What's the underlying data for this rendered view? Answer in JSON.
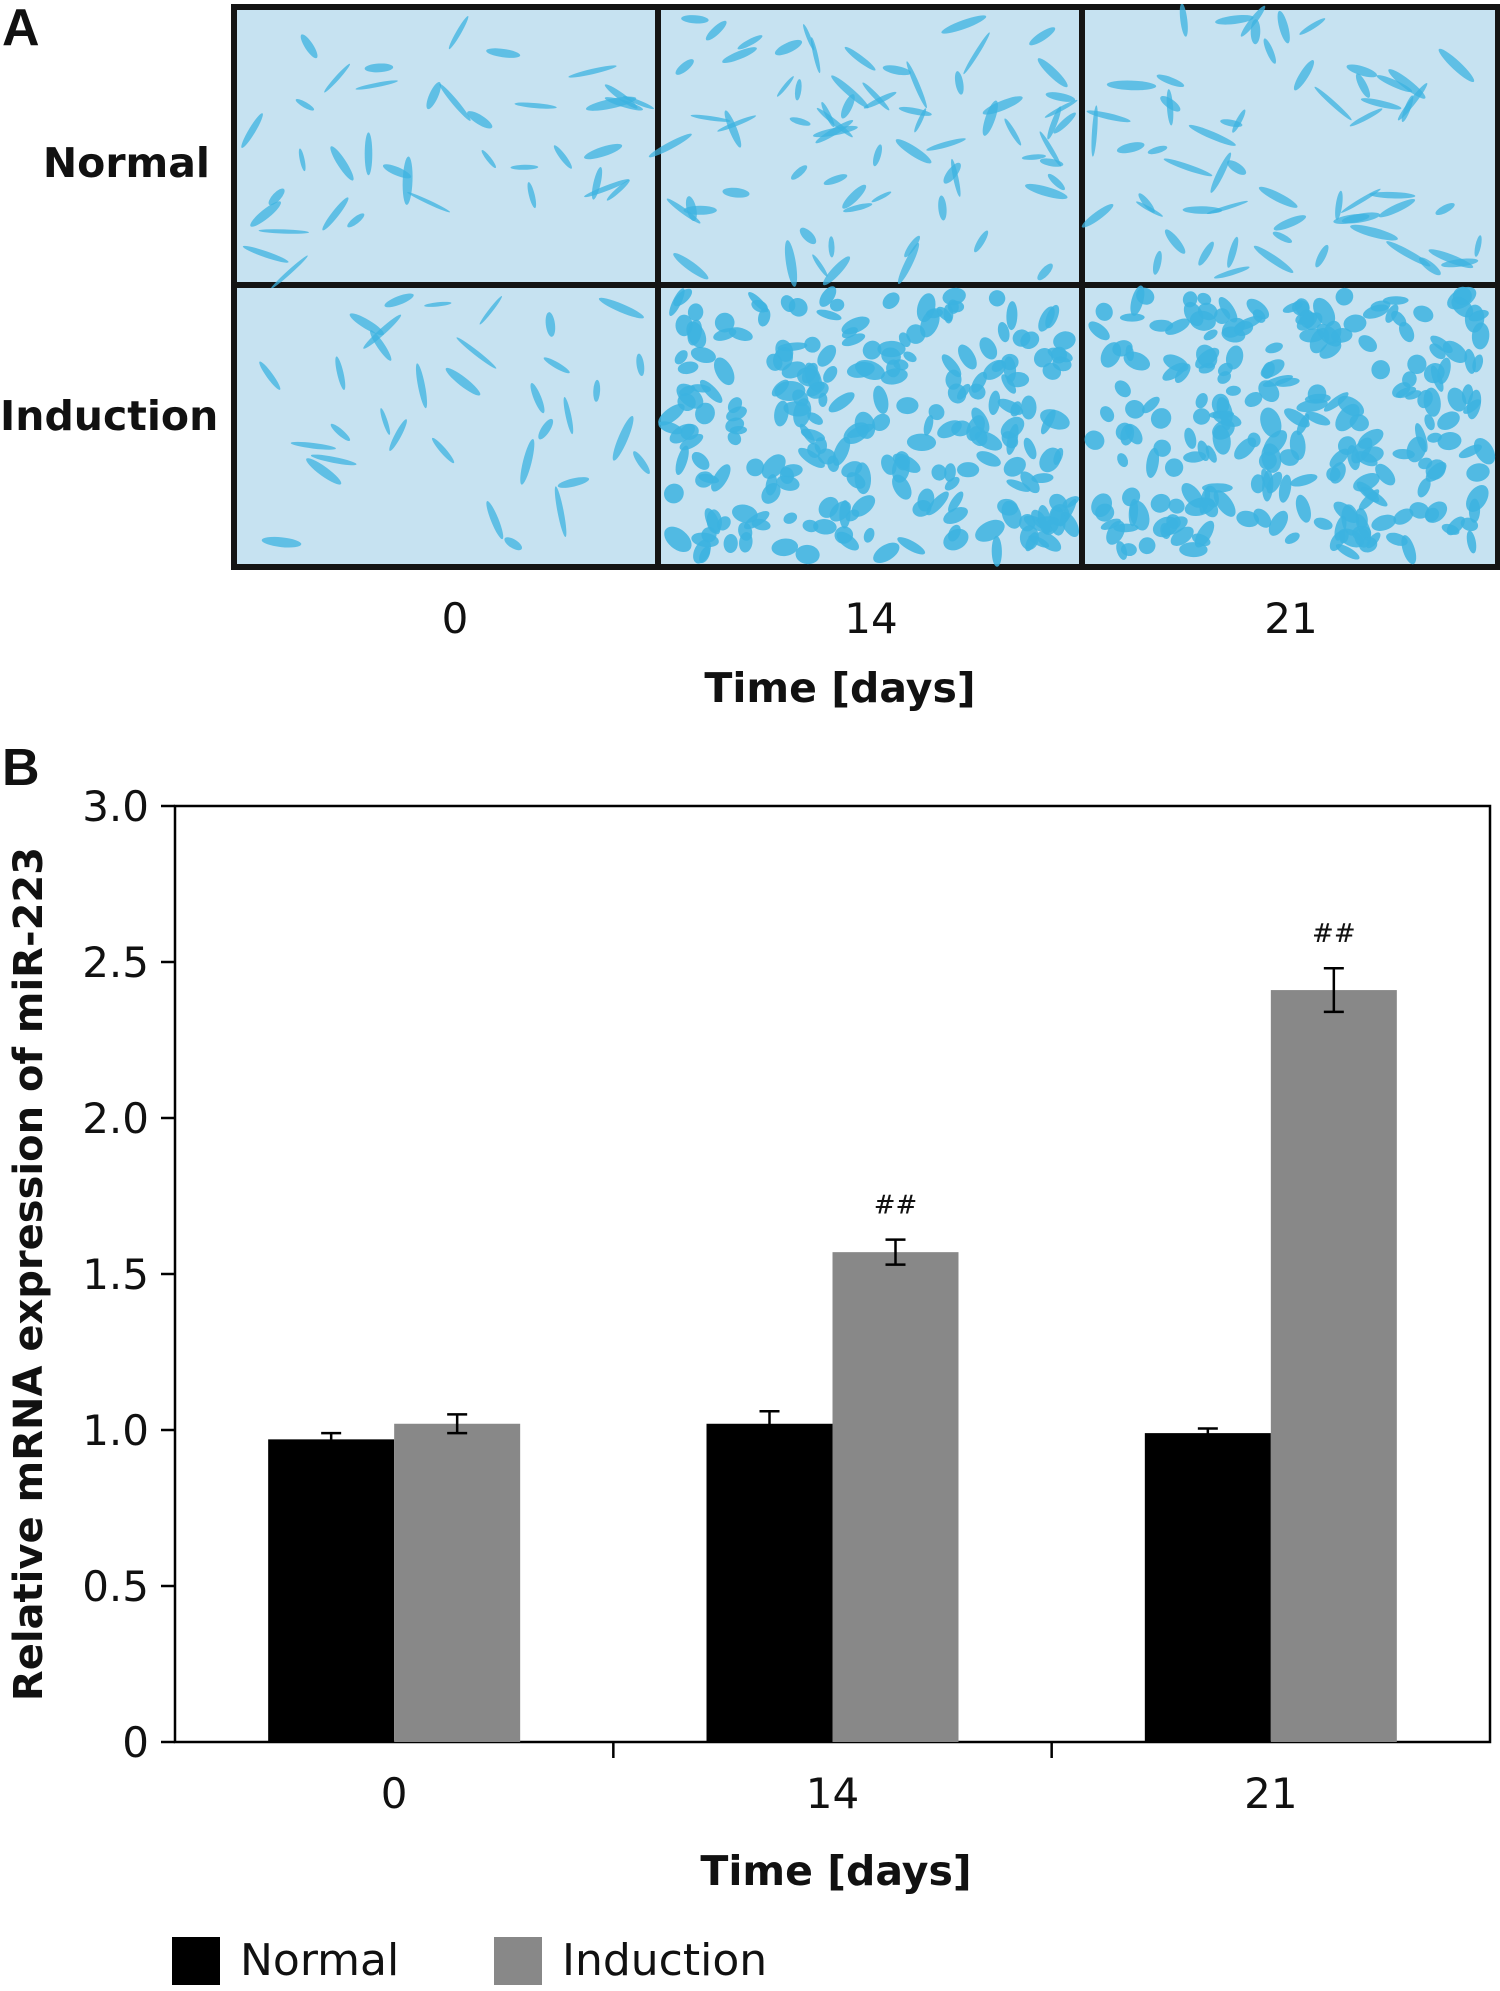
{
  "panel_a": {
    "letter": "A",
    "rows": [
      "Normal",
      "Induction"
    ],
    "columns": [
      "0",
      "14",
      "21"
    ],
    "xlabel": "Time [days]",
    "stain_color": "#3cb3e0",
    "background_color": "#c6e2f1"
  },
  "panel_b": {
    "letter": "B"
  },
  "chart_data": {
    "type": "bar",
    "categories": [
      "0",
      "14",
      "21"
    ],
    "series": [
      {
        "name": "Normal",
        "color": "#000000",
        "values": [
          0.97,
          1.02,
          0.99
        ],
        "errors": [
          0.02,
          0.04,
          0.015
        ]
      },
      {
        "name": "Induction",
        "color": "#888888",
        "values": [
          1.02,
          1.57,
          2.41
        ],
        "errors": [
          0.03,
          0.04,
          0.07
        ]
      }
    ],
    "annotations": [
      {
        "category": "14",
        "series": "Induction",
        "text": "##"
      },
      {
        "category": "21",
        "series": "Induction",
        "text": "##"
      }
    ],
    "xlabel": "Time [days]",
    "ylabel": "Relative mRNA expression of miR-223",
    "ylim": [
      0,
      3.0
    ],
    "yticks": [
      "0",
      "0.5",
      "1.0",
      "1.5",
      "2.0",
      "2.5",
      "3.0"
    ],
    "grid": false,
    "legend_position": "bottom-left"
  }
}
